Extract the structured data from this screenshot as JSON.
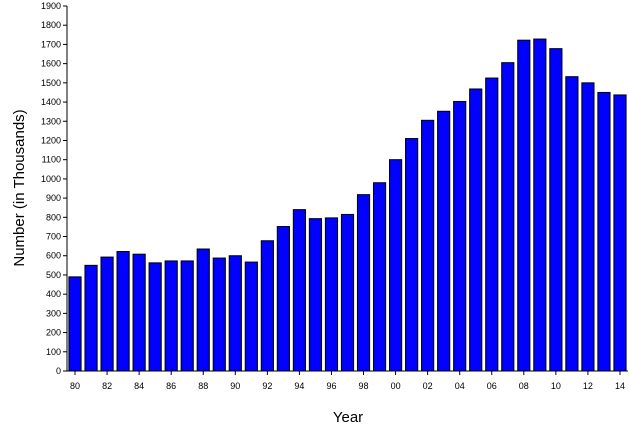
{
  "chart_data": {
    "type": "bar",
    "xlabel": "Year",
    "ylabel": "Number (in Thousands)",
    "ylim": [
      0,
      1900
    ],
    "y_ticks": [
      0,
      100,
      200,
      300,
      400,
      500,
      600,
      700,
      800,
      900,
      1000,
      1100,
      1200,
      1300,
      1400,
      1500,
      1600,
      1700,
      1800,
      1900
    ],
    "x_tick_labels": [
      "80",
      "82",
      "84",
      "86",
      "88",
      "90",
      "92",
      "94",
      "96",
      "98",
      "00",
      "02",
      "04",
      "06",
      "08",
      "10",
      "12",
      "14"
    ],
    "categories": [
      "1980",
      "1981",
      "1982",
      "1983",
      "1984",
      "1985",
      "1986",
      "1987",
      "1988",
      "1989",
      "1990",
      "1991",
      "1992",
      "1993",
      "1994",
      "1995",
      "1996",
      "1997",
      "1998",
      "1999",
      "2000",
      "2001",
      "2002",
      "2003",
      "2004",
      "2005",
      "2006",
      "2007",
      "2008",
      "2009",
      "2010",
      "2011",
      "2012",
      "2013",
      "2014"
    ],
    "values": [
      490,
      550,
      593,
      622,
      608,
      563,
      573,
      573,
      635,
      588,
      600,
      567,
      678,
      752,
      840,
      793,
      797,
      815,
      918,
      980,
      1100,
      1210,
      1305,
      1352,
      1403,
      1468,
      1525,
      1605,
      1722,
      1728,
      1678,
      1532,
      1500,
      1450,
      1437
    ],
    "bar_color": "#0000ff",
    "grid": false,
    "legend": "none"
  }
}
